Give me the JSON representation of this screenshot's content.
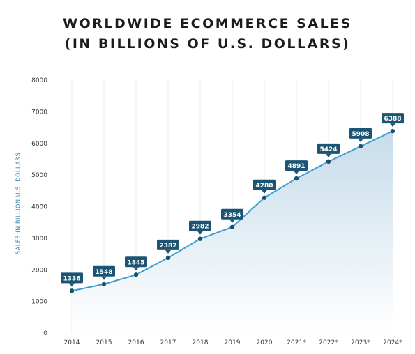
{
  "chart_data": {
    "type": "area",
    "title_lines": [
      "WORLDWIDE ECOMMERCE SALES",
      "(IN BILLIONS OF U.S. DOLLARS)"
    ],
    "xlabel": "",
    "ylabel": "SALES IN BILLION U.S. DOLLARS",
    "categories": [
      "2014",
      "2015",
      "2016",
      "2017",
      "2018",
      "2019",
      "2020",
      "2021*",
      "2022*",
      "2023*",
      "2024*"
    ],
    "values": [
      1336,
      1548,
      1845,
      2382,
      2982,
      3354,
      4280,
      4891,
      5424,
      5908,
      6388
    ],
    "ylim": [
      0,
      8000
    ],
    "yticks": [
      0,
      1000,
      2000,
      3000,
      4000,
      5000,
      6000,
      7000,
      8000
    ],
    "grid": "vertical",
    "legend": "none",
    "colors": {
      "line": "#3a9fd0",
      "marker": "#1e4f68",
      "label_bg": "#1c5573",
      "area_top": "#c7dcea",
      "area_bottom": "#ffffff",
      "grid": "#e6edf2"
    }
  }
}
